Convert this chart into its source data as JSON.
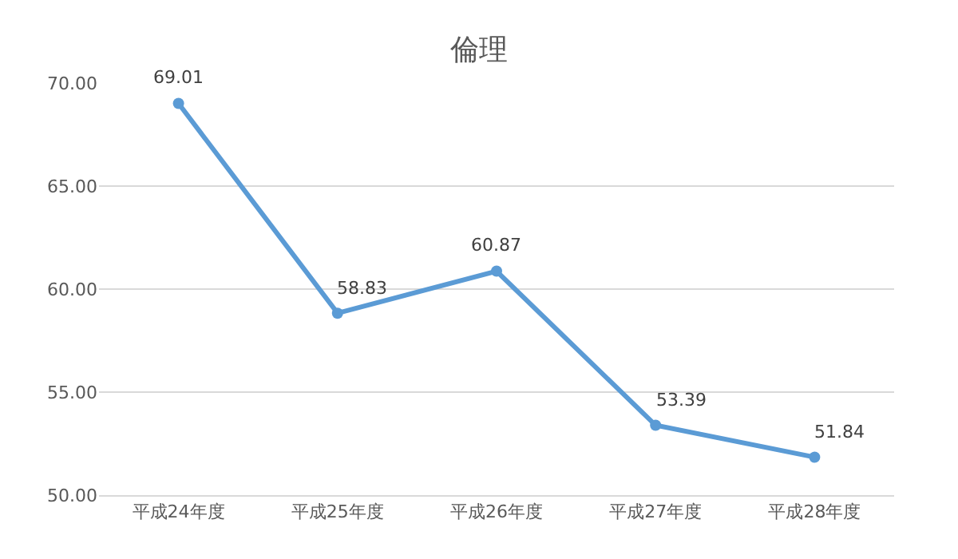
{
  "chart_data": {
    "type": "line",
    "title": "倫理",
    "categories": [
      "平成24年度",
      "平成25年度",
      "平成26年度",
      "平成27年度",
      "平成28年度"
    ],
    "values": [
      69.01,
      58.83,
      60.87,
      53.39,
      51.84
    ],
    "color": "#5b9bd5",
    "ylim": [
      50,
      70
    ],
    "yticks": [
      {
        "value": 50,
        "label": "50.00"
      },
      {
        "value": 55,
        "label": "55.00"
      },
      {
        "value": 60,
        "label": "60.00"
      },
      {
        "value": 65,
        "label": "65.00"
      },
      {
        "value": 70,
        "label": "70.00"
      }
    ],
    "grid": "y",
    "marker": "circle",
    "line_style": "solid",
    "data_labels": true
  }
}
